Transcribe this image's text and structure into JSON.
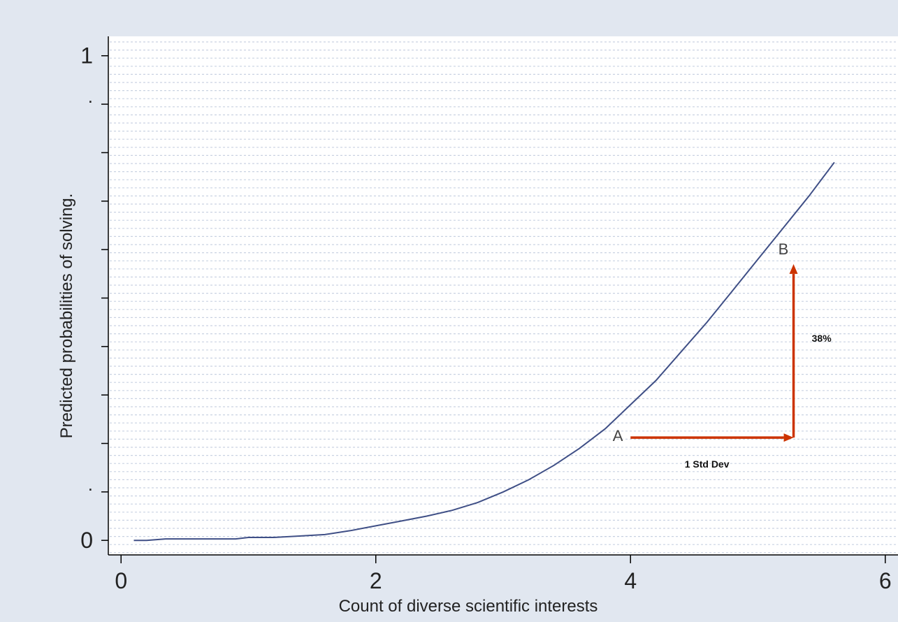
{
  "chart_data": {
    "type": "line",
    "title": "",
    "xlabel": "Count of diverse scientific interests",
    "ylabel": "Predicted probabilities of solving.",
    "xlim": [
      -0.1,
      6.1
    ],
    "ylim": [
      -0.03,
      1.04
    ],
    "x_ticks": [
      0,
      2,
      4,
      6
    ],
    "x_tick_labels": [
      "0",
      "2",
      "4",
      "6"
    ],
    "y_ticks": [
      0,
      0.1,
      0.2,
      0.3,
      0.4,
      0.5,
      0.6,
      0.7,
      0.8,
      0.9,
      1.0
    ],
    "y_tick_labels": [
      "0",
      ".",
      "",
      "",
      "",
      "",
      "",
      "",
      "",
      ".",
      "1"
    ],
    "grid": true,
    "series": [
      {
        "x": [
          0.1,
          0.2,
          0.35,
          0.5,
          0.7,
          0.9,
          1.0,
          1.2,
          1.4,
          1.6,
          1.8,
          2.0,
          2.2,
          2.4,
          2.6,
          2.8,
          3.0,
          3.2,
          3.4,
          3.6,
          3.8,
          4.0,
          4.2,
          4.4,
          4.6,
          4.8,
          5.0,
          5.2,
          5.4,
          5.6
        ],
        "y": [
          0.0,
          0.0,
          0.003,
          0.003,
          0.003,
          0.003,
          0.006,
          0.006,
          0.009,
          0.012,
          0.02,
          0.03,
          0.04,
          0.05,
          0.062,
          0.078,
          0.1,
          0.125,
          0.155,
          0.19,
          0.23,
          0.28,
          0.33,
          0.39,
          0.45,
          0.515,
          0.58,
          0.645,
          0.71,
          0.78
        ]
      }
    ],
    "annotations": [
      {
        "label": "A",
        "x": 3.9,
        "y": 0.205
      },
      {
        "label": "B",
        "x": 5.2,
        "y": 0.59
      },
      {
        "label": "1 Std Dev",
        "x": 4.6,
        "y": 0.15
      },
      {
        "label": "38%",
        "x": 5.5,
        "y": 0.41
      }
    ],
    "arrows": [
      {
        "from": [
          4.0,
          0.212
        ],
        "to": [
          5.28,
          0.212
        ]
      },
      {
        "from": [
          5.28,
          0.212
        ],
        "to": [
          5.28,
          0.57
        ]
      }
    ],
    "colors": {
      "line": "#3f4f86",
      "arrow": "#cc3300"
    }
  }
}
